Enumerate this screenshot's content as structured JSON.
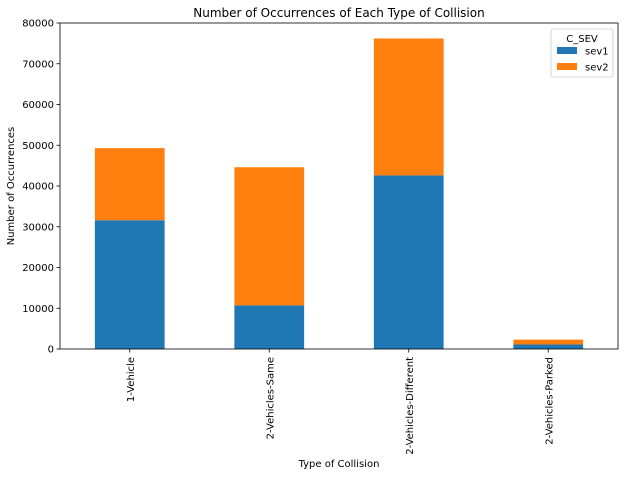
{
  "chart_data": {
    "type": "bar",
    "stacked": true,
    "title": "Number of Occurrences of Each Type of Collision",
    "xlabel": "Type of Collision",
    "ylabel": "Number of Occurrences",
    "categories": [
      "1-Vehicle",
      "2-Vehicles-Same",
      "2-Vehicles-Different",
      "2-Vehicles-Parked"
    ],
    "series": [
      {
        "name": "sev1",
        "color": "#1f77b4",
        "values": [
          31600,
          10700,
          42600,
          1100
        ]
      },
      {
        "name": "sev2",
        "color": "#ff7f0e",
        "values": [
          17700,
          33900,
          33600,
          1200
        ]
      }
    ],
    "ylim": [
      0,
      80000
    ],
    "yticks": [
      0,
      10000,
      20000,
      30000,
      40000,
      50000,
      60000,
      70000,
      80000
    ],
    "legend": {
      "title": "C_SEV",
      "position": "top-right"
    },
    "grid": false
  }
}
